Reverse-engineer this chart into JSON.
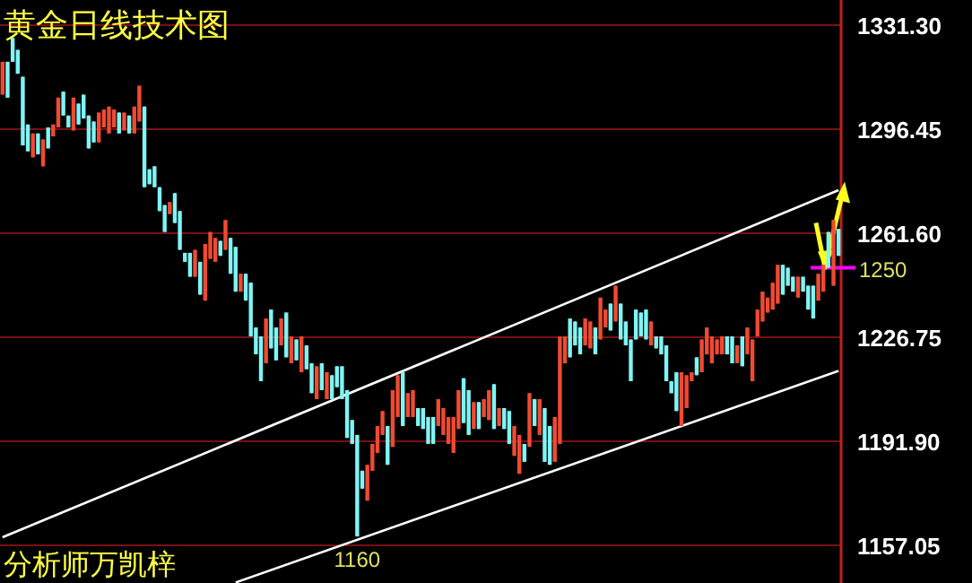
{
  "chart_data": {
    "type": "candlestick",
    "title": "黄金日线技术图",
    "tick_labels": "y",
    "grid": "y",
    "ylim": [
      1144.4,
      1339.7
    ],
    "yticks": [
      {
        "value": 1157.05,
        "label": "1157.05"
      },
      {
        "value": 1191.9,
        "label": "1191.90"
      },
      {
        "value": 1226.75,
        "label": "1226.75"
      },
      {
        "value": 1261.6,
        "label": "1261.60"
      },
      {
        "value": 1296.45,
        "label": "1296.45"
      },
      {
        "value": 1331.3,
        "label": "1331.30"
      }
    ],
    "annotations": [
      {
        "text": "1160",
        "y": 1160
      },
      "分析师万凯梓"
    ],
    "ref_lines": [
      {
        "axis": "y",
        "value": 1250,
        "label": "1250",
        "color": "#ff00ff"
      }
    ],
    "series": [
      {
        "type": "line",
        "color": "#ffffff",
        "values": [
          1159.7,
          null,
          null,
          null,
          null,
          null,
          null,
          null,
          null,
          null,
          null,
          null,
          null,
          null,
          null,
          null,
          null,
          null,
          null,
          null,
          null,
          null,
          null,
          null,
          null,
          null,
          null,
          null,
          null,
          null,
          null,
          null,
          null,
          null,
          null,
          null,
          null,
          null,
          null,
          null,
          null,
          null,
          null,
          null,
          null,
          null,
          null,
          null,
          null,
          null,
          null,
          null,
          null,
          null,
          null,
          null,
          null,
          null,
          null,
          null,
          null,
          null,
          null,
          null,
          null,
          null,
          null,
          null,
          null,
          null,
          null,
          null,
          null,
          null,
          null,
          null,
          null,
          null,
          null,
          null,
          null,
          null,
          null,
          null,
          null,
          null,
          null,
          null,
          null,
          null,
          null,
          null,
          null,
          null,
          null,
          null,
          null,
          null,
          null,
          null,
          null,
          null,
          null,
          null,
          null,
          null,
          null,
          null,
          null,
          null,
          null,
          null,
          null,
          null,
          null,
          null,
          null,
          null,
          null,
          null,
          null,
          null,
          null,
          null,
          null,
          null,
          null,
          null,
          null,
          null,
          null,
          null,
          null,
          null,
          null,
          null,
          null,
          null,
          null,
          null,
          null,
          null,
          null,
          null,
          null,
          null,
          null,
          null,
          null,
          null,
          null,
          null,
          null,
          null,
          null,
          null,
          null,
          null,
          null,
          null,
          null,
          null,
          null,
          null,
          null,
          1276
        ]
      },
      {
        "type": "line",
        "color": "#ffffff",
        "values": [
          null,
          null,
          null,
          null,
          null,
          null,
          null,
          null,
          null,
          null,
          null,
          null,
          null,
          null,
          null,
          null,
          null,
          null,
          null,
          null,
          null,
          null,
          null,
          null,
          null,
          null,
          null,
          null,
          null,
          null,
          null,
          null,
          null,
          null,
          null,
          null,
          null,
          null,
          null,
          null,
          null,
          null,
          null,
          null,
          null,
          null,
          1144.6,
          null,
          null,
          null,
          null,
          null,
          null,
          null,
          null,
          null,
          null,
          null,
          null,
          null,
          null,
          null,
          null,
          null,
          null,
          null,
          null,
          null,
          null,
          null,
          null,
          null,
          null,
          null,
          null,
          null,
          null,
          null,
          null,
          null,
          null,
          null,
          null,
          null,
          null,
          null,
          null,
          null,
          null,
          null,
          null,
          null,
          null,
          null,
          null,
          null,
          null,
          null,
          null,
          null,
          null,
          null,
          null,
          null,
          null,
          null,
          null,
          null,
          null,
          null,
          null,
          null,
          null,
          null,
          null,
          null,
          null,
          null,
          null,
          null,
          null,
          null,
          null,
          null,
          null,
          null,
          null,
          null,
          null,
          null,
          null,
          null,
          null,
          null,
          null,
          null,
          null,
          null,
          null,
          null,
          null,
          null,
          null,
          null,
          null,
          null,
          null,
          null,
          null,
          null,
          null,
          null,
          null,
          null,
          null,
          null,
          null,
          null,
          null,
          null,
          null,
          null,
          null,
          null,
          null,
          1215.4
        ]
      }
    ],
    "categories": [
      null,
      null,
      null,
      null,
      null,
      null,
      null,
      null,
      null,
      null,
      null,
      null,
      null,
      null,
      null,
      null,
      null,
      null,
      null,
      null,
      null,
      null,
      null,
      null,
      null,
      null,
      null,
      null,
      null,
      null,
      null,
      null,
      null,
      null,
      null,
      null,
      null,
      null,
      null,
      null,
      null,
      null,
      null,
      null,
      null,
      null,
      null,
      null,
      null,
      null,
      null,
      null,
      null,
      null,
      null,
      null,
      null,
      null,
      null,
      null,
      null,
      null,
      null,
      null,
      null,
      null,
      null,
      null,
      null,
      null,
      null,
      null,
      null,
      null,
      null,
      null,
      null,
      null,
      null,
      null,
      null,
      null,
      null,
      null,
      null,
      null,
      null,
      null,
      null,
      null,
      null,
      null,
      null,
      null,
      null,
      null,
      null,
      null,
      null,
      null,
      null,
      null,
      null,
      null,
      null,
      null,
      null,
      null,
      null,
      null,
      null,
      null,
      null,
      null,
      null,
      null,
      null,
      null,
      null,
      null,
      null,
      null,
      null,
      null,
      null,
      null,
      null,
      null,
      null,
      null,
      null,
      null,
      null,
      null,
      null,
      null,
      null,
      null,
      null,
      null,
      null,
      null,
      null,
      null,
      null,
      null,
      null,
      null,
      null,
      null,
      null,
      null,
      null,
      null,
      null,
      null,
      null,
      null,
      null,
      null,
      null,
      null,
      null,
      null,
      null,
      null
    ],
    "ohlc": [
      [
        1308,
        1319,
        1308,
        1319
      ],
      [
        1319,
        1319,
        1307,
        1307
      ],
      [
        1327,
        1327,
        1319,
        1319
      ],
      [
        1323,
        1323,
        1315,
        1315
      ],
      [
        1314,
        1314,
        1291,
        1291
      ],
      [
        1298,
        1298,
        1289,
        1289
      ],
      [
        1287,
        1295,
        1287,
        1295
      ],
      [
        1295,
        1295,
        1288,
        1288
      ],
      [
        1284,
        1293,
        1284,
        1293
      ],
      [
        1297,
        1297,
        1290,
        1290
      ],
      [
        1294,
        1298,
        1294,
        1298
      ],
      [
        1297,
        1307,
        1297,
        1307
      ],
      [
        1309,
        1309,
        1301,
        1301
      ],
      [
        1301,
        1301,
        1297,
        1297
      ],
      [
        1296,
        1307,
        1296,
        1307
      ],
      [
        1305,
        1305,
        1298,
        1298
      ],
      [
        1308,
        1308,
        1300,
        1300
      ],
      [
        1301,
        1301,
        1290,
        1290
      ],
      [
        1299,
        1299,
        1292,
        1292
      ],
      [
        1292,
        1302,
        1292,
        1302
      ],
      [
        1297,
        1303,
        1297,
        1303
      ],
      [
        1295,
        1304,
        1295,
        1304
      ],
      [
        1297,
        1303,
        1297,
        1303
      ],
      [
        1302,
        1302,
        1295,
        1295
      ],
      [
        1296,
        1302,
        1296,
        1302
      ],
      [
        1301,
        1301,
        1295,
        1295
      ],
      [
        1295,
        1304,
        1295,
        1304
      ],
      [
        1299,
        1311,
        1299,
        1311
      ],
      [
        1304,
        1304,
        1277,
        1277
      ],
      [
        1283,
        1283,
        1278,
        1278
      ],
      [
        1284,
        1284,
        1277,
        1277
      ],
      [
        1277,
        1277,
        1269,
        1269
      ],
      [
        1271,
        1271,
        1262,
        1262
      ],
      [
        1268,
        1272,
        1268,
        1272
      ],
      [
        1275,
        1275,
        1265,
        1265
      ],
      [
        1269,
        1269,
        1256,
        1256
      ],
      [
        1255,
        1255,
        1252,
        1252
      ],
      [
        1255,
        1255,
        1247,
        1247
      ],
      [
        1247,
        1256,
        1247,
        1256
      ],
      [
        1252,
        1252,
        1241,
        1241
      ],
      [
        1239,
        1258,
        1239,
        1258
      ],
      [
        1253,
        1262,
        1253,
        1262
      ],
      [
        1252,
        1260,
        1252,
        1260
      ],
      [
        1259,
        1259,
        1254,
        1254
      ],
      [
        1256,
        1266,
        1256,
        1266
      ],
      [
        1260,
        1260,
        1248,
        1248
      ],
      [
        1257,
        1257,
        1242,
        1242
      ],
      [
        1242,
        1248,
        1242,
        1248
      ],
      [
        1248,
        1248,
        1239,
        1239
      ],
      [
        1245,
        1245,
        1227,
        1227
      ],
      [
        1230,
        1230,
        1221,
        1221
      ],
      [
        1227,
        1227,
        1212,
        1212
      ],
      [
        1218,
        1233,
        1218,
        1233
      ],
      [
        1236,
        1236,
        1223,
        1223
      ],
      [
        1230,
        1230,
        1219,
        1219
      ],
      [
        1224,
        1233,
        1224,
        1233
      ],
      [
        1235,
        1235,
        1220,
        1220
      ],
      [
        1218,
        1227,
        1218,
        1227
      ],
      [
        1226,
        1226,
        1219,
        1219
      ],
      [
        1215,
        1227,
        1215,
        1227
      ],
      [
        1224,
        1224,
        1216,
        1216
      ],
      [
        1218,
        1218,
        1208,
        1208
      ],
      [
        1206,
        1217,
        1206,
        1217
      ],
      [
        1218,
        1218,
        1209,
        1209
      ],
      [
        1206,
        1215,
        1206,
        1215
      ],
      [
        1214,
        1214,
        1206,
        1206
      ],
      [
        1217,
        1217,
        1210,
        1210
      ],
      [
        1217,
        1217,
        1206,
        1206
      ],
      [
        1209,
        1209,
        1193,
        1193
      ],
      [
        1199,
        1199,
        1191,
        1191
      ],
      [
        1194,
        1194,
        1160,
        1160
      ],
      [
        1182,
        1182,
        1176,
        1176
      ],
      [
        1172,
        1184,
        1172,
        1184
      ],
      [
        1182,
        1191,
        1182,
        1191
      ],
      [
        1188,
        1197,
        1188,
        1197
      ],
      [
        1194,
        1202,
        1194,
        1202
      ],
      [
        1197,
        1197,
        1184,
        1184
      ],
      [
        1190,
        1209,
        1190,
        1209
      ],
      [
        1200,
        1214,
        1200,
        1214
      ],
      [
        1215,
        1215,
        1197,
        1197
      ],
      [
        1200,
        1208,
        1200,
        1208
      ],
      [
        1200,
        1209,
        1200,
        1209
      ],
      [
        1203,
        1203,
        1197,
        1197
      ],
      [
        1203,
        1203,
        1196,
        1196
      ],
      [
        1200,
        1200,
        1191,
        1191
      ],
      [
        1200,
        1200,
        1191,
        1191
      ],
      [
        1197,
        1206,
        1197,
        1206
      ],
      [
        1194,
        1203,
        1194,
        1203
      ],
      [
        1191,
        1200,
        1191,
        1200
      ],
      [
        1188,
        1200,
        1188,
        1200
      ],
      [
        1196,
        1209,
        1196,
        1209
      ],
      [
        1213,
        1213,
        1198,
        1198
      ],
      [
        1209,
        1209,
        1194,
        1194
      ],
      [
        1196,
        1205,
        1196,
        1205
      ],
      [
        1205,
        1205,
        1196,
        1196
      ],
      [
        1200,
        1206,
        1200,
        1206
      ],
      [
        1199,
        1209,
        1199,
        1209
      ],
      [
        1211,
        1211,
        1196,
        1196
      ],
      [
        1197,
        1203,
        1197,
        1203
      ],
      [
        1203,
        1203,
        1196,
        1196
      ],
      [
        1202,
        1202,
        1191,
        1191
      ],
      [
        1187,
        1197,
        1187,
        1197
      ],
      [
        1181,
        1194,
        1181,
        1194
      ],
      [
        1191,
        1191,
        1185,
        1185
      ],
      [
        1190,
        1208,
        1190,
        1208
      ],
      [
        1206,
        1206,
        1197,
        1197
      ],
      [
        1194,
        1206,
        1194,
        1206
      ],
      [
        1203,
        1203,
        1185,
        1185
      ],
      [
        1197,
        1197,
        1184,
        1184
      ],
      [
        1185,
        1200,
        1185,
        1200
      ],
      [
        1191,
        1227,
        1191,
        1227
      ],
      [
        1218,
        1227,
        1218,
        1227
      ],
      [
        1233,
        1233,
        1220,
        1220
      ],
      [
        1232,
        1232,
        1224,
        1224
      ],
      [
        1230,
        1230,
        1221,
        1221
      ],
      [
        1224,
        1233,
        1224,
        1233
      ],
      [
        1223,
        1232,
        1223,
        1232
      ],
      [
        1230,
        1230,
        1221,
        1221
      ],
      [
        1226,
        1240,
        1226,
        1240
      ],
      [
        1230,
        1236,
        1230,
        1236
      ],
      [
        1238,
        1238,
        1229,
        1229
      ],
      [
        1232,
        1244,
        1232,
        1244
      ],
      [
        1238,
        1238,
        1226,
        1226
      ],
      [
        1232,
        1232,
        1224,
        1224
      ],
      [
        1226,
        1226,
        1212,
        1212
      ],
      [
        1236,
        1236,
        1226,
        1226
      ],
      [
        1235,
        1235,
        1227,
        1227
      ],
      [
        1236,
        1236,
        1226,
        1226
      ],
      [
        1224,
        1232,
        1224,
        1232
      ],
      [
        1227,
        1227,
        1223,
        1223
      ],
      [
        1227,
        1227,
        1221,
        1221
      ],
      [
        1224,
        1224,
        1212,
        1212
      ],
      [
        1212,
        1212,
        1208,
        1208
      ],
      [
        1215,
        1215,
        1202,
        1202
      ],
      [
        1197,
        1215,
        1197,
        1215
      ],
      [
        1203,
        1214,
        1203,
        1214
      ],
      [
        1212,
        1215,
        1212,
        1215
      ],
      [
        1220,
        1220,
        1214,
        1214
      ],
      [
        1215,
        1226,
        1215,
        1226
      ],
      [
        1221,
        1230,
        1221,
        1230
      ],
      [
        1218,
        1227,
        1218,
        1227
      ],
      [
        1221,
        1226,
        1221,
        1226
      ],
      [
        1221,
        1227,
        1221,
        1227
      ],
      [
        1227,
        1227,
        1221,
        1221
      ],
      [
        1227,
        1227,
        1218,
        1218
      ],
      [
        1218,
        1224,
        1218,
        1224
      ],
      [
        1227,
        1227,
        1217,
        1217
      ],
      [
        1221,
        1230,
        1221,
        1230
      ],
      [
        1212,
        1226,
        1212,
        1226
      ],
      [
        1227,
        1236,
        1227,
        1236
      ],
      [
        1232,
        1242,
        1232,
        1242
      ],
      [
        1235,
        1240,
        1235,
        1240
      ],
      [
        1236,
        1245,
        1236,
        1245
      ],
      [
        1238,
        1251,
        1238,
        1251
      ],
      [
        1251,
        1251,
        1241,
        1241
      ],
      [
        1250,
        1250,
        1244,
        1244
      ],
      [
        1247,
        1247,
        1242,
        1242
      ],
      [
        1240,
        1247,
        1240,
        1247
      ],
      [
        1247,
        1247,
        1242,
        1242
      ],
      [
        1244,
        1244,
        1236,
        1236
      ],
      [
        1244,
        1244,
        1233,
        1233
      ],
      [
        1239,
        1248,
        1239,
        1248
      ],
      [
        1242,
        1251,
        1242,
        1251
      ],
      [
        1262,
        1262,
        1250,
        1250
      ],
      [
        1244,
        1266,
        1244,
        1266
      ],
      [
        1263,
        1263,
        1254,
        1254
      ]
    ]
  }
}
